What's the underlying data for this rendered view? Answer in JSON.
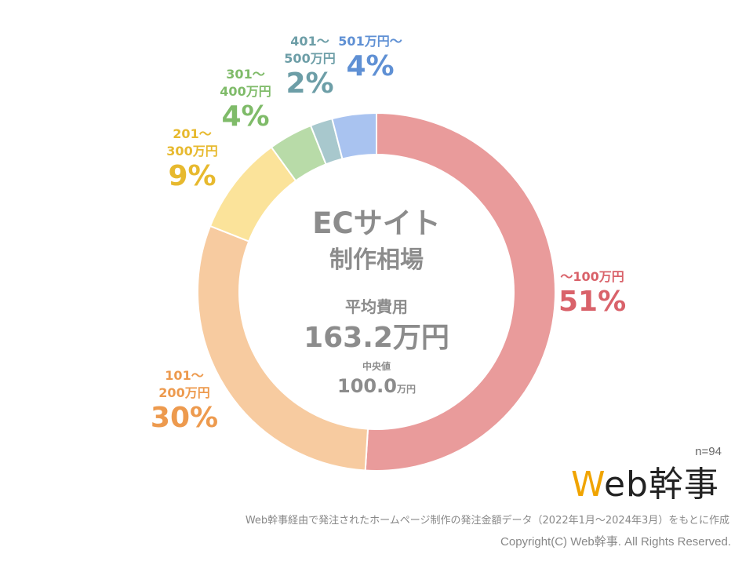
{
  "center": {
    "title_line1": "ECサイト",
    "title_line2": "制作相場",
    "average_label": "平均費用",
    "average_value": "163.2万円",
    "median_label": "中央値",
    "median_number": "100.0",
    "median_unit": "万円"
  },
  "sample_size": "n=94",
  "logo": {
    "text_w": "W",
    "text_rest": "eb幹事",
    "accent_color": "#f0a400"
  },
  "source_note": "Web幹事経由で発注されたホームページ制作の発注金額データ（2022年1月〜2024年3月）をもとに作成",
  "copyright": "Copyright(C) Web幹事. All Rights Reserved.",
  "chart_data": {
    "type": "pie",
    "donut": true,
    "categories": [
      "〜100万円",
      "101〜200万円",
      "201〜300万円",
      "301〜400万円",
      "401〜500万円",
      "501万円〜"
    ],
    "label_lines": [
      [
        "〜100万円"
      ],
      [
        "101〜",
        "200万円"
      ],
      [
        "201〜",
        "300万円"
      ],
      [
        "301〜",
        "400万円"
      ],
      [
        "401〜",
        "500万円"
      ],
      [
        "501万円〜"
      ]
    ],
    "values": [
      51,
      30,
      9,
      4,
      2,
      4
    ],
    "value_labels": [
      "51%",
      "30%",
      "9%",
      "4%",
      "2%",
      "4%"
    ],
    "slice_colors": [
      "#e99b9b",
      "#f7cba0",
      "#fbe39a",
      "#b8dba8",
      "#a8c8cd",
      "#a9c3f0"
    ],
    "label_colors": [
      "#d9626a",
      "#ed9a4e",
      "#e7b92e",
      "#7fbb69",
      "#6d9ea7",
      "#5f90d4"
    ],
    "start": "top",
    "direction": "clockwise"
  }
}
